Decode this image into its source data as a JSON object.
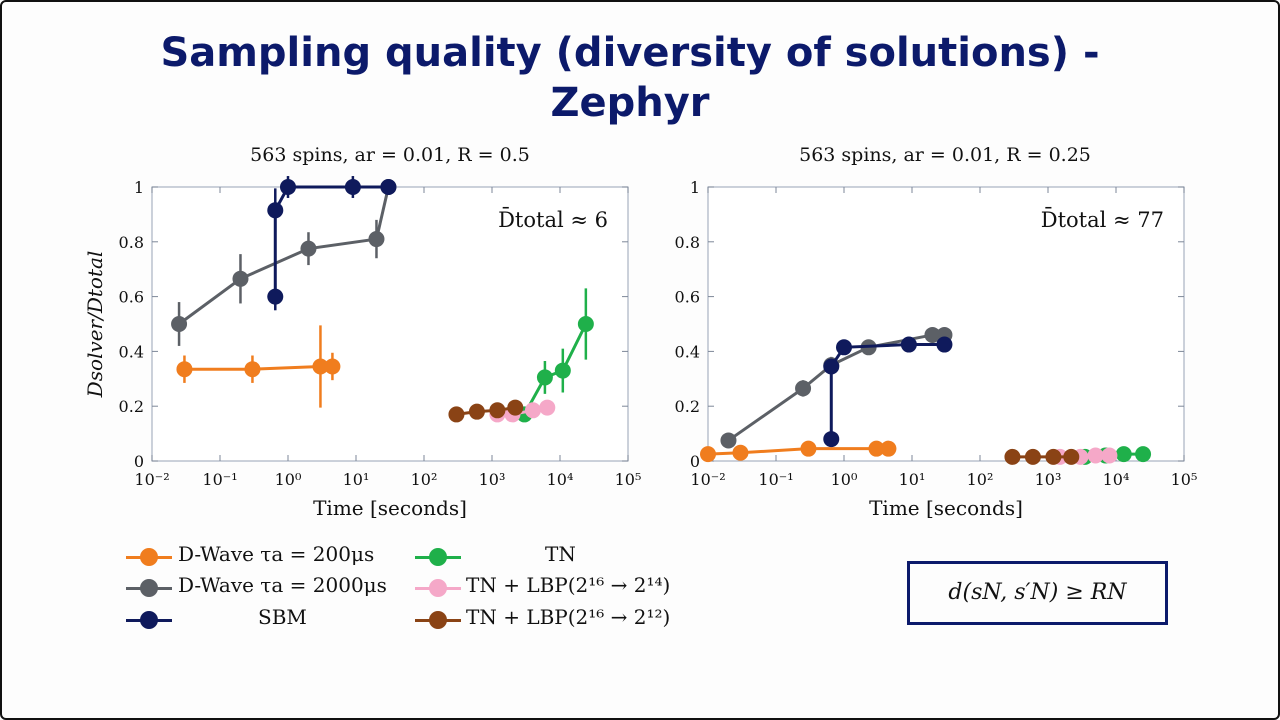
{
  "slide": {
    "title_line1": "Sampling quality (diversity of solutions) -",
    "title_line2": "Zephyr",
    "formula": "d(sN, s′N) ≥ RN"
  },
  "colors": {
    "dwave200": "#f07d1e",
    "dwave2000": "#5c6066",
    "sbm": "#0f1a5c",
    "tn": "#1fb04a",
    "tn_lbp14": "#f5a8c8",
    "tn_lbp12": "#8a4315"
  },
  "legend": [
    {
      "label": "D-Wave τa = 200μs",
      "color": "#f07d1e"
    },
    {
      "label": "D-Wave τa = 2000μs",
      "color": "#5c6066"
    },
    {
      "label": "SBM",
      "color": "#0f1a5c"
    },
    {
      "label": "TN",
      "color": "#1fb04a"
    },
    {
      "label": "TN + LBP(2¹⁶ → 2¹⁴)",
      "color": "#f5a8c8"
    },
    {
      "label": "TN + LBP(2¹⁶ → 2¹²)",
      "color": "#8a4315"
    }
  ],
  "chart_data": [
    {
      "type": "scatter",
      "title": "563 spins, ar = 0.01, R = 0.5",
      "annotation": "D̄total ≈ 6",
      "xlabel": "Time [seconds]",
      "ylabel": "Dsolver/Dtotal",
      "xscale": "log",
      "xlim": [
        0.01,
        100000
      ],
      "ylim": [
        0,
        1
      ],
      "xticks": [
        "10⁻²",
        "10⁻¹",
        "10⁰",
        "10¹",
        "10²",
        "10³",
        "10⁴",
        "10⁵"
      ],
      "yticks": [
        "0",
        "0.2",
        "0.4",
        "0.6",
        "0.8",
        "1"
      ],
      "series": [
        {
          "name": "D-Wave τa = 200μs",
          "x": [
            0.03,
            0.3,
            3,
            4.5
          ],
          "y": [
            0.335,
            0.335,
            0.345,
            0.345
          ],
          "err": [
            0.05,
            0.05,
            0.15,
            0.05
          ]
        },
        {
          "name": "D-Wave τa = 2000μs",
          "x": [
            0.025,
            0.2,
            2,
            20,
            30
          ],
          "y": [
            0.5,
            0.665,
            0.775,
            0.81,
            1.0
          ],
          "err": [
            0.08,
            0.09,
            0.06,
            0.07,
            0.0
          ]
        },
        {
          "name": "SBM",
          "x": [
            0.65,
            0.65,
            1,
            9,
            30
          ],
          "y": [
            0.6,
            0.915,
            1.0,
            1.0,
            1.0
          ],
          "err": [
            0.05,
            0.08,
            0.04,
            0.04,
            0.0
          ]
        },
        {
          "name": "TN",
          "x": [
            3000,
            6000,
            11000,
            24000
          ],
          "y": [
            0.17,
            0.305,
            0.33,
            0.5
          ],
          "err": [
            0.02,
            0.06,
            0.08,
            0.13
          ]
        },
        {
          "name": "TN + LBP(2¹⁶ → 2¹⁴)",
          "x": [
            1200,
            2000,
            4000,
            6500
          ],
          "y": [
            0.17,
            0.17,
            0.185,
            0.195
          ],
          "err": [
            0,
            0,
            0,
            0
          ]
        },
        {
          "name": "TN + LBP(2¹⁶ → 2¹²)",
          "x": [
            300,
            600,
            1200,
            2200
          ],
          "y": [
            0.17,
            0.18,
            0.185,
            0.195
          ],
          "err": [
            0,
            0,
            0,
            0
          ]
        }
      ]
    },
    {
      "type": "scatter",
      "title": "563 spins, ar = 0.01, R = 0.25",
      "annotation": "D̄total ≈ 77",
      "xlabel": "Time [seconds]",
      "ylabel": "",
      "xscale": "log",
      "xlim": [
        0.01,
        100000
      ],
      "ylim": [
        0,
        1
      ],
      "xticks": [
        "10⁻²",
        "10⁻¹",
        "10⁰",
        "10¹",
        "10²",
        "10³",
        "10⁴",
        "10⁵"
      ],
      "yticks": [
        "0",
        "0.2",
        "0.4",
        "0.6",
        "0.8",
        "1"
      ],
      "series": [
        {
          "name": "D-Wave τa = 200μs",
          "x": [
            0.01,
            0.03,
            0.3,
            3,
            4.5
          ],
          "y": [
            0.025,
            0.03,
            0.045,
            0.045,
            0.045
          ],
          "err": [
            0,
            0,
            0,
            0,
            0
          ]
        },
        {
          "name": "D-Wave τa = 2000μs",
          "x": [
            0.02,
            0.25,
            0.65,
            2.3,
            20,
            30
          ],
          "y": [
            0.075,
            0.265,
            0.35,
            0.415,
            0.46,
            0.46
          ],
          "err": [
            0.02,
            0.03,
            0.03,
            0.02,
            0.01,
            0.01
          ]
        },
        {
          "name": "SBM",
          "x": [
            0.65,
            0.65,
            1.0,
            9,
            30
          ],
          "y": [
            0.08,
            0.345,
            0.415,
            0.425,
            0.425
          ],
          "err": [
            0,
            0.02,
            0.02,
            0.01,
            0.01
          ]
        },
        {
          "name": "TN",
          "x": [
            3500,
            7000,
            13000,
            25000
          ],
          "y": [
            0.015,
            0.02,
            0.025,
            0.025
          ],
          "err": [
            0,
            0,
            0,
            0
          ]
        },
        {
          "name": "TN + LBP(2¹⁶ → 2¹⁴)",
          "x": [
            1500,
            3000,
            5000,
            8000
          ],
          "y": [
            0.015,
            0.015,
            0.02,
            0.02
          ],
          "err": [
            0,
            0,
            0,
            0
          ]
        },
        {
          "name": "TN + LBP(2¹⁶ → 2¹²)",
          "x": [
            300,
            600,
            1200,
            2200
          ],
          "y": [
            0.015,
            0.015,
            0.015,
            0.015
          ],
          "err": [
            0,
            0,
            0,
            0
          ]
        }
      ]
    }
  ]
}
